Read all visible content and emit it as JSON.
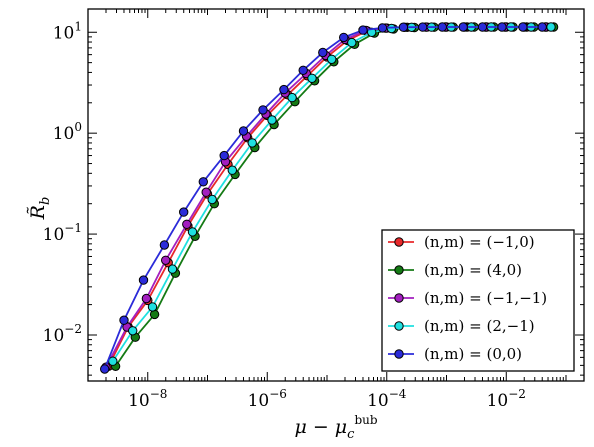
{
  "chart_data": {
    "type": "line",
    "title": "",
    "xlabel": "μ − μ_c^bub",
    "ylabel": "R̃_b",
    "xscale": "log",
    "yscale": "log",
    "xlim": [
      1e-09,
      0.2
    ],
    "ylim": [
      0.0035,
      17
    ],
    "x_tick_labels": [
      "10^-8",
      "10^-6",
      "10^-4",
      "10^-2"
    ],
    "y_tick_labels": [
      "10^-2",
      "10^-1",
      "10^0",
      "10^1"
    ],
    "grid": false,
    "legend_position": "lower-right",
    "series": [
      {
        "name": "(n,m) = (−1,0)",
        "color": "#e8292b",
        "x": [
          2.2e-09,
          4.7e-09,
          1e-08,
          2.2e-08,
          4.7e-08,
          1e-07,
          2.2e-07,
          4.7e-07,
          1e-06,
          2.2e-06,
          4.7e-06,
          1e-05,
          2.2e-05,
          4.7e-05,
          0.0001,
          0.00022,
          0.00047,
          0.001,
          0.0022,
          0.0047,
          0.01,
          0.022,
          0.047
        ],
        "y": [
          0.0049,
          0.012,
          0.022,
          0.052,
          0.12,
          0.25,
          0.49,
          0.9,
          1.5,
          2.4,
          3.7,
          5.7,
          8.3,
          10.3,
          11.0,
          11.2,
          11.25,
          11.27,
          11.28,
          11.28,
          11.28,
          11.28,
          11.28
        ]
      },
      {
        "name": "(n,m) = (4,0)",
        "color": "#147a14",
        "x": [
          2.9e-09,
          6.2e-09,
          1.3e-08,
          2.9e-08,
          6.2e-08,
          1.3e-07,
          2.9e-07,
          6.2e-07,
          1.3e-06,
          2.9e-06,
          6.2e-06,
          1.3e-05,
          2.9e-05,
          6.2e-05,
          0.00013,
          0.00029,
          0.00062,
          0.0013,
          0.0029,
          0.0062,
          0.013,
          0.029,
          0.062
        ],
        "y": [
          0.0049,
          0.0095,
          0.016,
          0.041,
          0.095,
          0.2,
          0.39,
          0.72,
          1.22,
          2.05,
          3.3,
          5.1,
          7.6,
          9.8,
          10.8,
          11.15,
          11.23,
          11.26,
          11.27,
          11.28,
          11.28,
          11.28,
          11.28
        ]
      },
      {
        "name": "(n,m) = (−1,−1)",
        "color": "#a31fbf",
        "x": [
          2e-09,
          4.5e-09,
          9.5e-09,
          2e-08,
          4.5e-08,
          9.5e-08,
          2e-07,
          4.5e-07,
          9.5e-07,
          2e-06,
          4.5e-06,
          9.5e-06,
          2e-05,
          4.5e-05,
          9.5e-05,
          0.0002,
          0.00045,
          0.00095,
          0.002,
          0.0045,
          0.0095,
          0.02,
          0.045
        ],
        "y": [
          0.0048,
          0.012,
          0.023,
          0.055,
          0.125,
          0.26,
          0.52,
          0.93,
          1.55,
          2.5,
          3.9,
          5.9,
          8.5,
          10.4,
          11.0,
          11.2,
          11.25,
          11.27,
          11.28,
          11.28,
          11.28,
          11.28,
          11.28
        ]
      },
      {
        "name": "(n,m) = (2,−1)",
        "color": "#1fe0e0",
        "x": [
          2.6e-09,
          5.6e-09,
          1.2e-08,
          2.6e-08,
          5.6e-08,
          1.2e-07,
          2.6e-07,
          5.6e-07,
          1.2e-06,
          2.6e-06,
          5.6e-06,
          1.2e-05,
          2.6e-05,
          5.6e-05,
          0.00012,
          0.00026,
          0.00056,
          0.0012,
          0.0026,
          0.0056,
          0.012,
          0.026,
          0.056
        ],
        "y": [
          0.0055,
          0.011,
          0.019,
          0.045,
          0.105,
          0.22,
          0.43,
          0.8,
          1.35,
          2.25,
          3.5,
          5.4,
          7.9,
          10.0,
          10.9,
          11.2,
          11.24,
          11.26,
          11.27,
          11.28,
          11.28,
          11.28,
          11.28
        ]
      },
      {
        "name": "(n,m) = (0,0)",
        "color": "#2b2bd9",
        "x": [
          1.9e-09,
          4e-09,
          8.5e-09,
          1.9e-08,
          4e-08,
          8.5e-08,
          1.9e-07,
          4e-07,
          8.5e-07,
          1.9e-06,
          4e-06,
          8.5e-06,
          1.9e-05,
          4e-05,
          8.5e-05,
          0.00019,
          0.0004,
          0.00085,
          0.0019,
          0.004,
          0.0085,
          0.019,
          0.04
        ],
        "y": [
          0.0046,
          0.014,
          0.035,
          0.078,
          0.165,
          0.33,
          0.6,
          1.05,
          1.7,
          2.7,
          4.2,
          6.3,
          8.9,
          10.5,
          11.05,
          11.22,
          11.26,
          11.27,
          11.28,
          11.28,
          11.28,
          11.28,
          11.28
        ]
      }
    ]
  }
}
